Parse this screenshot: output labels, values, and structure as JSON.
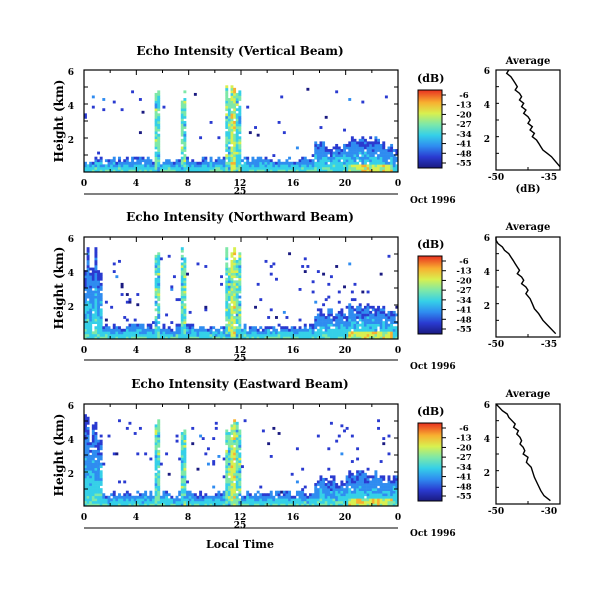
{
  "chart_data": [
    {
      "type": "heatmap",
      "title": "Echo Intensity (Vertical Beam)",
      "ylabel": "Height (km)",
      "xticks": [
        "0",
        "4",
        "8",
        "12",
        "16",
        "20",
        "0"
      ],
      "yticks": [
        "6",
        "4",
        "2"
      ],
      "date_day": "25",
      "date_label": "Oct 1996",
      "colorbar": {
        "label": "(dB)",
        "ticks": [
          "-6",
          "-13",
          "-20",
          "-27",
          "-34",
          "-41",
          "-48",
          "-55"
        ]
      },
      "profile": {
        "title": "Average",
        "xlabel": "(dB)",
        "xticks": [
          "-50",
          "-35"
        ],
        "yticks": [
          "6",
          "4",
          "2"
        ],
        "xlim": [
          -50,
          -35
        ],
        "ylim": [
          0,
          6
        ],
        "x": [
          -47,
          -47.5,
          -46.5,
          -46,
          -45.5,
          -45,
          -45.5,
          -44.5,
          -44,
          -44.5,
          -43.5,
          -44,
          -43,
          -43.5,
          -42.5,
          -42,
          -42.5,
          -41.5,
          -42,
          -41,
          -41.5,
          -40.5,
          -40,
          -39.5,
          -39,
          -38,
          -37,
          -36,
          -35
        ],
        "y": [
          6.0,
          5.8,
          5.6,
          5.4,
          5.2,
          5.0,
          4.8,
          4.6,
          4.4,
          4.2,
          4.0,
          3.8,
          3.6,
          3.4,
          3.2,
          3.0,
          2.8,
          2.6,
          2.4,
          2.2,
          2.0,
          1.8,
          1.6,
          1.4,
          1.2,
          1.0,
          0.8,
          0.5,
          0.2
        ]
      }
    },
    {
      "type": "heatmap",
      "title": "Echo Intensity (Northward Beam)",
      "ylabel": "Height (km)",
      "xticks": [
        "0",
        "4",
        "8",
        "12",
        "16",
        "20",
        "0"
      ],
      "yticks": [
        "6",
        "4",
        "2"
      ],
      "date_day": "25",
      "date_label": "Oct 1996",
      "colorbar": {
        "label": "(dB)",
        "ticks": [
          "-6",
          "-13",
          "-20",
          "-27",
          "-34",
          "-41",
          "-48",
          "-55"
        ]
      },
      "profile": {
        "title": "Average",
        "xlabel": "",
        "xticks": [
          "-50",
          "-35"
        ],
        "yticks": [
          "6",
          "4",
          "2"
        ],
        "xlim": [
          -50,
          -35
        ],
        "ylim": [
          0,
          6
        ],
        "x": [
          -51,
          -50,
          -49.5,
          -48.5,
          -48,
          -47,
          -46.5,
          -46,
          -45.5,
          -45,
          -44.5,
          -45,
          -44,
          -43.5,
          -44,
          -43,
          -42.5,
          -43,
          -42,
          -41.5,
          -41,
          -40,
          -39,
          -37.5,
          -36
        ],
        "y": [
          6.0,
          5.8,
          5.6,
          5.4,
          5.2,
          5.0,
          4.8,
          4.6,
          4.4,
          4.2,
          4.0,
          3.8,
          3.6,
          3.4,
          3.2,
          3.0,
          2.8,
          2.6,
          2.3,
          2.0,
          1.7,
          1.4,
          1.0,
          0.6,
          0.2
        ]
      }
    },
    {
      "type": "heatmap",
      "title": "Echo Intensity (Eastward Beam)",
      "ylabel": "Height (km)",
      "xticks": [
        "0",
        "4",
        "8",
        "12",
        "16",
        "20",
        "0"
      ],
      "yticks": [
        "6",
        "4",
        "2"
      ],
      "date_day": "25",
      "date_label": "Oct 1996",
      "xlabel": "Local Time",
      "colorbar": {
        "label": "(dB)",
        "ticks": [
          "-6",
          "-13",
          "-20",
          "-27",
          "-34",
          "-41",
          "-48",
          "-55"
        ]
      },
      "profile": {
        "title": "Average",
        "xlabel": "",
        "xticks": [
          "-50",
          "-30"
        ],
        "yticks": [
          "6",
          "4",
          "2"
        ],
        "xlim": [
          -50,
          -30
        ],
        "ylim": [
          0,
          6
        ],
        "x": [
          -50,
          -49,
          -48,
          -46.5,
          -46,
          -45,
          -44,
          -44.5,
          -43,
          -43.5,
          -42.5,
          -42,
          -42.5,
          -41.5,
          -41,
          -41.5,
          -40,
          -40.5,
          -39,
          -38.5,
          -38,
          -37,
          -36,
          -35,
          -33
        ],
        "y": [
          6.0,
          5.8,
          5.6,
          5.4,
          5.2,
          5.0,
          4.8,
          4.6,
          4.4,
          4.2,
          4.0,
          3.8,
          3.6,
          3.4,
          3.2,
          3.0,
          2.8,
          2.5,
          2.2,
          1.9,
          1.6,
          1.2,
          0.8,
          0.5,
          0.2
        ]
      }
    }
  ]
}
